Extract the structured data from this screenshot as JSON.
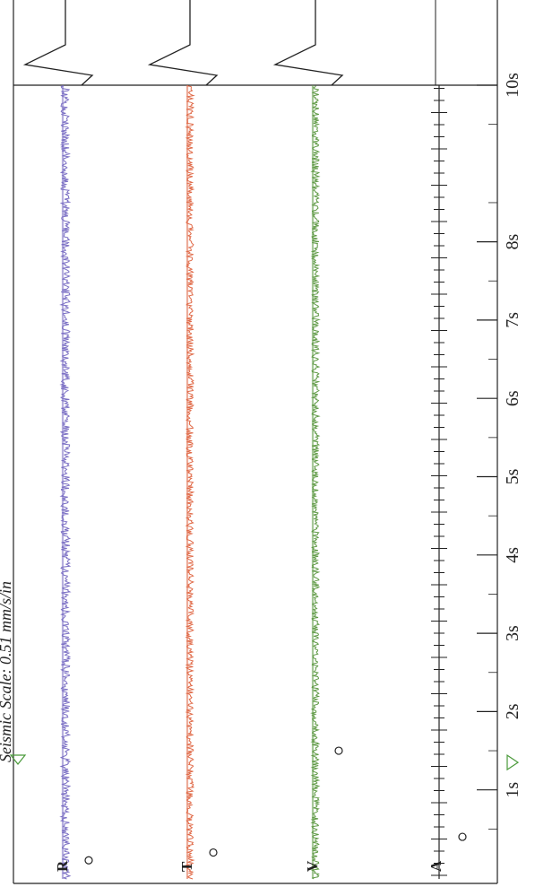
{
  "header": {
    "scale_label": "Seismic Scale: 0.51 mm/s/in"
  },
  "chart_data": {
    "type": "line",
    "title": "",
    "xlabel": "",
    "ylabel": "",
    "x_unit": "s",
    "xlim": [
      0,
      10
    ],
    "time_ticks": [
      {
        "t": 1,
        "label": "1s"
      },
      {
        "t": 2,
        "label": "2s"
      },
      {
        "t": 3,
        "label": "3s"
      },
      {
        "t": 4,
        "label": "4s"
      },
      {
        "t": 5,
        "label": "5s"
      },
      {
        "t": 6,
        "label": "6s"
      },
      {
        "t": 7,
        "label": "7s"
      },
      {
        "t": 8,
        "label": "8s"
      },
      {
        "t": 10,
        "label": "10s"
      }
    ],
    "series": [
      {
        "name": "R",
        "color": "#7b6fc4",
        "amplitude": 0.05,
        "peak_marker_t": 0.1
      },
      {
        "name": "T",
        "color": "#e06a48",
        "amplitude": 0.04,
        "peak_marker_t": 0.2
      },
      {
        "name": "V",
        "color": "#5f9a45",
        "amplitude": 0.04,
        "peak_marker_t": 1.5
      },
      {
        "name": "A",
        "color": "#222222",
        "amplitude": 0.02,
        "peak_marker_t": 0.4
      }
    ],
    "trigger_marker_t": 1.35,
    "trigger_color": "#4a9a3a"
  }
}
